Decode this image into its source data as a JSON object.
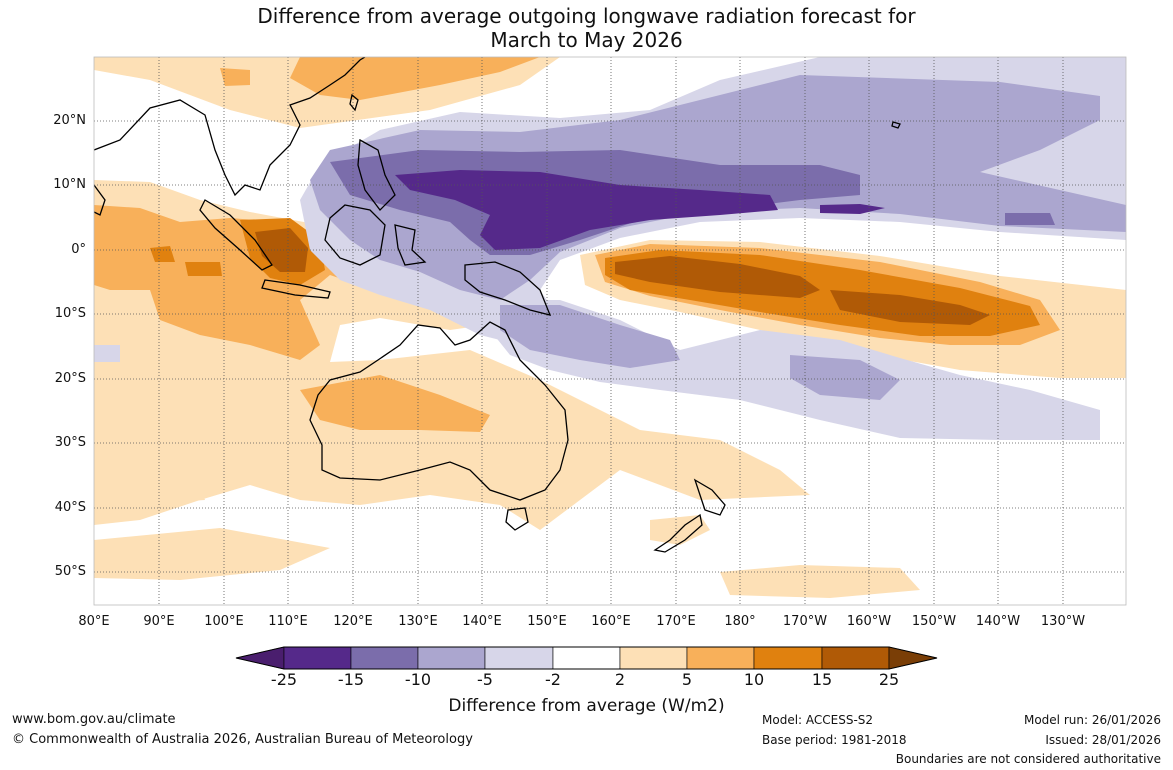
{
  "title": {
    "line1": "Difference from average outgoing longwave radiation forecast for",
    "line2": "March to May 2026"
  },
  "map": {
    "lon_labels": [
      "80°E",
      "90°E",
      "100°E",
      "110°E",
      "120°E",
      "130°E",
      "140°E",
      "150°E",
      "160°E",
      "170°E",
      "180°",
      "170°W",
      "160°W",
      "150°W",
      "140°W",
      "130°W"
    ],
    "lat_labels": [
      "20°N",
      "10°N",
      "0°",
      "10°S",
      "20°S",
      "30°S",
      "40°S",
      "50°S"
    ]
  },
  "colorbar": {
    "ticks": [
      "-25",
      "-15",
      "-10",
      "-5",
      "-2",
      "2",
      "5",
      "10",
      "15",
      "25"
    ],
    "colors": [
      "#4a1e6e",
      "#55298a",
      "#7b6dab",
      "#aba6cf",
      "#d7d6e9",
      "#ffffff",
      "#fde0b6",
      "#f8b05a",
      "#e0810f",
      "#b05a06",
      "#7a3e06"
    ],
    "label": "Difference from average (W/m2)"
  },
  "footer": {
    "website": "www.bom.gov.au/climate",
    "copyright": "© Commonwealth of Australia 2026, Australian Bureau of Meteorology",
    "model": "Model: ACCESS-S2",
    "base_period": "Base period: 1981-2018",
    "model_run": "Model run: 26/01/2026",
    "issued": "Issued: 28/01/2026",
    "disclaimer": "Boundaries are not considered authoritative"
  }
}
